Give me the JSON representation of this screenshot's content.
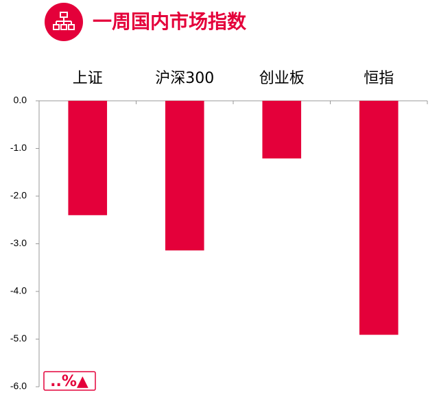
{
  "chart_data": {
    "type": "bar",
    "title": "一周国内市场指数",
    "categories": [
      "上证",
      "沪深300",
      "创业板",
      "恒指"
    ],
    "values": [
      -2.4,
      -3.14,
      -1.21,
      -4.91
    ],
    "color": "#e4003a",
    "ylim": [
      -6,
      0
    ],
    "yticks": [
      {
        "value": 0,
        "label": "0.0"
      },
      {
        "value": -1,
        "label": "-1.0"
      },
      {
        "value": -2,
        "label": "-2.0"
      },
      {
        "value": -3,
        "label": "-3.0"
      },
      {
        "value": -4,
        "label": "-4.0"
      },
      {
        "value": -5,
        "label": "-5.0"
      },
      {
        "value": -6,
        "label": "-6.0"
      }
    ],
    "annotation": "..%▲"
  }
}
